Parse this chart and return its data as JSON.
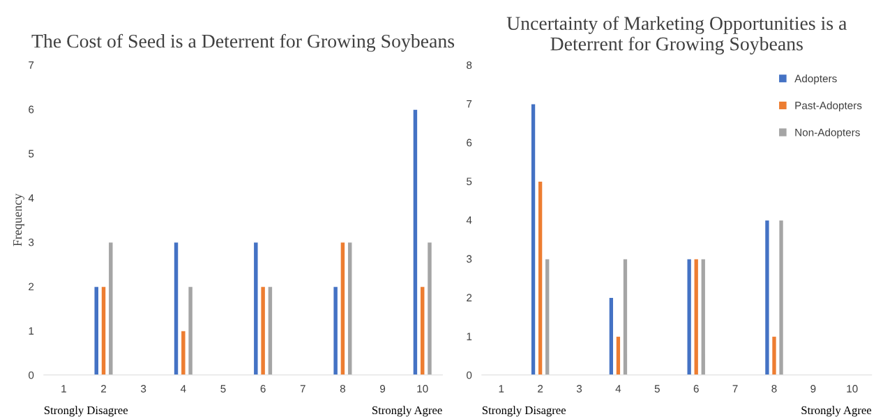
{
  "chart_data": [
    {
      "type": "bar",
      "title": "The Cost of Seed is a Deterrent for Growing Soybeans",
      "ylabel": "Frequency",
      "categories": [
        "1",
        "2",
        "3",
        "4",
        "5",
        "6",
        "7",
        "8",
        "9",
        "10"
      ],
      "series": [
        {
          "color": "#4472c4",
          "values": [
            null,
            2,
            null,
            3,
            null,
            3,
            null,
            2,
            null,
            6
          ]
        },
        {
          "color": "#ed7d31",
          "values": [
            null,
            2,
            null,
            1,
            null,
            2,
            null,
            3,
            null,
            2
          ]
        },
        {
          "color": "#a5a5a5",
          "values": [
            null,
            3,
            null,
            2,
            null,
            2,
            null,
            3,
            null,
            3
          ]
        }
      ],
      "ylim": [
        0,
        7
      ],
      "yticks": [
        0,
        1,
        2,
        3,
        4,
        5,
        6,
        7
      ],
      "annotations": [
        "Strongly Disagree",
        "Strongly Agree"
      ]
    },
    {
      "type": "bar",
      "title": "Uncertainty of Marketing Opportunities is a Deterrent for Growing Soybeans",
      "categories": [
        "1",
        "2",
        "3",
        "4",
        "5",
        "6",
        "7",
        "8",
        "9",
        "10"
      ],
      "series": [
        {
          "name": "Adopters",
          "color": "#4472c4",
          "values": [
            null,
            7,
            null,
            2,
            null,
            3,
            null,
            4,
            null,
            null
          ]
        },
        {
          "name": "Past-Adopters",
          "color": "#ed7d31",
          "values": [
            null,
            5,
            null,
            1,
            null,
            3,
            null,
            1,
            null,
            null
          ]
        },
        {
          "name": "Non-Adopters",
          "color": "#a5a5a5",
          "values": [
            null,
            3,
            null,
            3,
            null,
            3,
            null,
            4,
            null,
            null
          ]
        }
      ],
      "ylim": [
        0,
        8
      ],
      "yticks": [
        0,
        1,
        2,
        3,
        4,
        5,
        6,
        7,
        8
      ],
      "legend": "top right",
      "annotations": [
        "Strongly Disagree",
        "Strongly Agree"
      ]
    }
  ]
}
